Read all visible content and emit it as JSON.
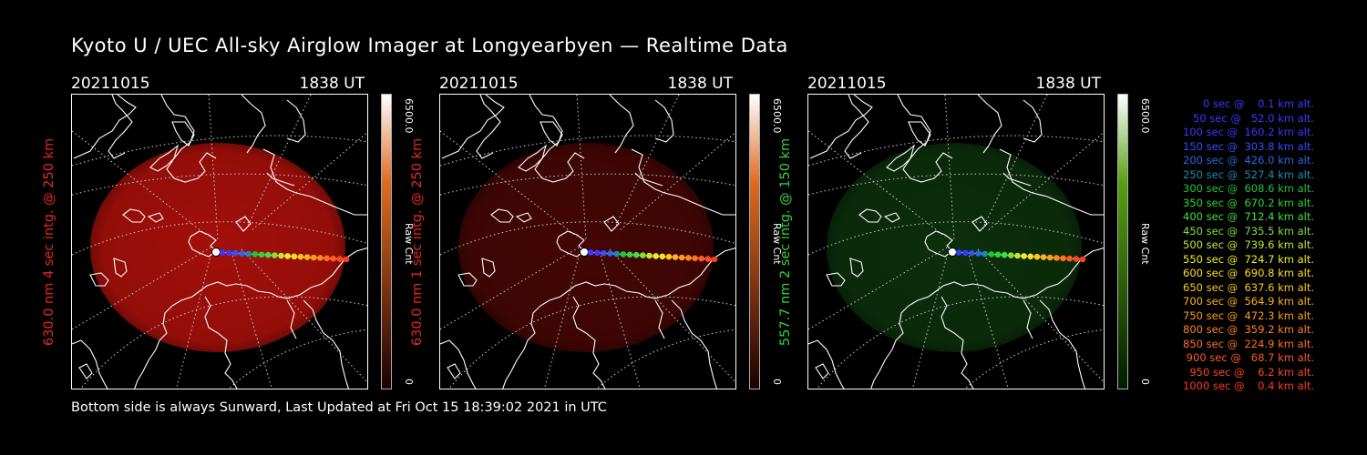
{
  "title": "Kyoto U / UEC All-sky Airglow Imager at Longyearbyen — Realtime Data",
  "footer": "Bottom side is always Sunward, Last Updated at Fri Oct 15 18:39:02 2021 in UTC",
  "panels": [
    {
      "date": "20211015",
      "time": "1838 UT",
      "ylabel": "630.0 nm 4 sec intg. @ 250 km",
      "label_color": "#e8281e",
      "glow_color": "#c0120c",
      "glow_opacity": 0.85,
      "colorbar": {
        "max": "6500.0",
        "unit": "Raw Cnt",
        "min": "0",
        "top_color": "#ffffff",
        "mid_color": "#e06a20",
        "bottom_color": "#1a0000"
      }
    },
    {
      "date": "20211015",
      "time": "1838 UT",
      "ylabel": "630.0 nm 1 sec intg. @ 250 km",
      "label_color": "#e8281e",
      "glow_color": "#5a0806",
      "glow_opacity": 0.75,
      "colorbar": {
        "max": "6500.0",
        "unit": "Raw Cnt",
        "min": "0",
        "top_color": "#ffffff",
        "mid_color": "#e06a20",
        "bottom_color": "#1a0000"
      }
    },
    {
      "date": "20211015",
      "time": "1838 UT",
      "ylabel": "557.7 nm 2 sec intg. @ 150 km",
      "label_color": "#34d43a",
      "glow_color": "#0e3a0e",
      "glow_opacity": 0.8,
      "colorbar": {
        "max": "6500.0",
        "unit": "Raw Cnt",
        "min": "0",
        "top_color": "#ffffff",
        "mid_color": "#56a012",
        "bottom_color": "#001a00"
      }
    }
  ],
  "legend": [
    {
      "text": "   0 sec @    0.1 km alt.",
      "color": "#3a3aff"
    },
    {
      "text": "  50 sec @   52.0 km alt.",
      "color": "#3a3aff"
    },
    {
      "text": " 100 sec @  160.2 km alt.",
      "color": "#3a3aff"
    },
    {
      "text": " 150 sec @  303.8 km alt.",
      "color": "#3a4cff"
    },
    {
      "text": " 200 sec @  426.0 km alt.",
      "color": "#2a6ae0"
    },
    {
      "text": " 250 sec @  527.4 km alt.",
      "color": "#1e8ab4"
    },
    {
      "text": " 300 sec @  608.6 km alt.",
      "color": "#20c440"
    },
    {
      "text": " 350 sec @  670.2 km alt.",
      "color": "#2ad82a"
    },
    {
      "text": " 400 sec @  712.4 km alt.",
      "color": "#40e040"
    },
    {
      "text": " 450 sec @  735.5 km alt.",
      "color": "#80e040"
    },
    {
      "text": " 500 sec @  739.6 km alt.",
      "color": "#c0e830"
    },
    {
      "text": " 550 sec @  724.7 km alt.",
      "color": "#f0f020"
    },
    {
      "text": " 600 sec @  690.8 km alt.",
      "color": "#ffe020"
    },
    {
      "text": " 650 sec @  637.6 km alt.",
      "color": "#ffc820"
    },
    {
      "text": " 700 sec @  564.9 km alt.",
      "color": "#ffb020"
    },
    {
      "text": " 750 sec @  472.3 km alt.",
      "color": "#ff9a20"
    },
    {
      "text": " 800 sec @  359.2 km alt.",
      "color": "#ff8420"
    },
    {
      "text": " 850 sec @  224.9 km alt.",
      "color": "#ff7020"
    },
    {
      "text": " 900 sec @   68.7 km alt.",
      "color": "#ff5a20"
    },
    {
      "text": " 950 sec @    6.2 km alt.",
      "color": "#ff4820"
    },
    {
      "text": "1000 sec @    0.4 km alt.",
      "color": "#ff3a20"
    }
  ]
}
